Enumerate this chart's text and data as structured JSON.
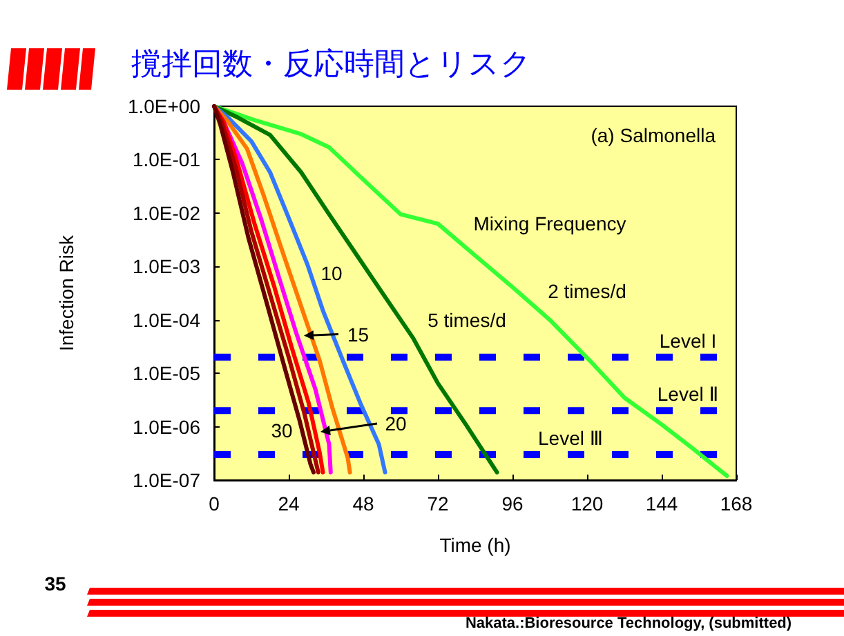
{
  "chart_data": {
    "type": "line",
    "title": "撹拌回数・反応時間とリスク",
    "subtitle": "(a) Salmonella",
    "xlabel": "Time (h)",
    "ylabel": "Infection Risk",
    "legend_title": "Mixing Frequency",
    "log": "y",
    "grid": false,
    "marker": "none",
    "line_style": "solid",
    "xlim": [
      0,
      168
    ],
    "xticks": [
      0,
      24,
      48,
      72,
      96,
      120,
      144,
      168
    ],
    "ylim": [
      1e-07,
      1
    ],
    "yticks": [
      {
        "value": 1,
        "label": "1.0E+00"
      },
      {
        "value": 0.1,
        "label": "1.0E-01"
      },
      {
        "value": 0.01,
        "label": "1.0E-02"
      },
      {
        "value": 0.001,
        "label": "1.0E-03"
      },
      {
        "value": 0.0001,
        "label": "1.0E-04"
      },
      {
        "value": 1e-05,
        "label": "1.0E-05"
      },
      {
        "value": 1e-06,
        "label": "1.0E-06"
      },
      {
        "value": 1e-07,
        "label": "1.0E-07"
      }
    ],
    "series": [
      {
        "color": "#33ff33",
        "x": [
          0,
          13,
          28,
          37,
          47,
          60,
          72,
          84,
          96,
          108,
          121,
          132,
          144,
          154,
          165
        ],
        "values": [
          1,
          0.55,
          0.3,
          0.17,
          0.048,
          0.0095,
          0.0063,
          0.0016,
          0.00041,
          0.0001,
          1.7e-05,
          3.5e-06,
          1.1e-06,
          3.9e-07,
          1.2e-07
        ]
      },
      {
        "color": "#007700",
        "x": [
          0,
          7.5,
          18,
          28,
          37,
          46,
          55,
          64,
          72,
          81,
          91
        ],
        "values": [
          1,
          0.62,
          0.29,
          0.058,
          0.0095,
          0.0016,
          0.00027,
          4.6e-05,
          6.5e-06,
          1.1e-06,
          1.4e-07
        ]
      },
      {
        "color": "#3377ff",
        "x": [
          0,
          4.4,
          12,
          18,
          24,
          30,
          35,
          41.5,
          47,
          53,
          55
        ],
        "values": [
          1,
          0.62,
          0.22,
          0.058,
          0.0081,
          0.0011,
          0.00015,
          1.7e-05,
          2.8e-06,
          4.7e-07,
          1.4e-07
        ]
      },
      {
        "color": "#ff7700",
        "x": [
          0,
          4.4,
          10.6,
          16,
          22,
          28,
          34,
          38,
          43,
          43.7
        ],
        "values": [
          1,
          0.52,
          0.16,
          0.021,
          0.0019,
          0.00018,
          1.7e-05,
          2.3e-06,
          2.6e-07,
          1.4e-07
        ]
      },
      {
        "color": "#ff00ff",
        "x": [
          0,
          3,
          9,
          15,
          21,
          26.5,
          32.6,
          37,
          37.5
        ],
        "values": [
          1,
          0.52,
          0.087,
          0.0081,
          0.00059,
          5.5e-05,
          5e-06,
          4.7e-07,
          1.4e-07
        ]
      },
      {
        "color": "#ff0000",
        "x": [
          0,
          3,
          7.5,
          13,
          19.4,
          25,
          30.4,
          34,
          35
        ],
        "values": [
          1,
          0.52,
          0.087,
          0.0063,
          0.00041,
          3e-05,
          2.8e-06,
          3.2e-07,
          1.4e-07
        ]
      },
      {
        "color": "#aa0000",
        "x": [
          0,
          2.5,
          7,
          12,
          18,
          24,
          29,
          32.5,
          33.5
        ],
        "values": [
          1,
          0.5,
          0.07,
          0.0045,
          0.0003,
          2e-05,
          1.8e-06,
          2.5e-07,
          1.4e-07
        ]
      },
      {
        "color": "#660000",
        "x": [
          0,
          2,
          6,
          11,
          17,
          22.5,
          27.5,
          31,
          32
        ],
        "values": [
          1,
          0.45,
          0.06,
          0.0035,
          0.0002,
          1.4e-05,
          1.3e-06,
          2e-07,
          1.4e-07
        ]
      }
    ],
    "ref_lines": [
      {
        "axis": "y",
        "value": 2e-05,
        "label": "Level I",
        "color": "#0000ff",
        "line_style": "dashed"
      },
      {
        "axis": "y",
        "value": 2e-06,
        "label": "Level Ⅱ",
        "color": "#0000ff",
        "line_style": "dashed"
      },
      {
        "axis": "y",
        "value": 3e-07,
        "label": "Level Ⅲ",
        "color": "#0000ff",
        "line_style": "dashed"
      }
    ],
    "annotations": [
      "35",
      "Nakata.:Bioresource Technology, (submitted)",
      "2 times/d",
      "5 times/d",
      "10",
      {
        "text": "15",
        "x": 29,
        "y": 5e-05
      },
      {
        "text": "20",
        "x": 34,
        "y": 8e-07
      },
      "30"
    ]
  }
}
